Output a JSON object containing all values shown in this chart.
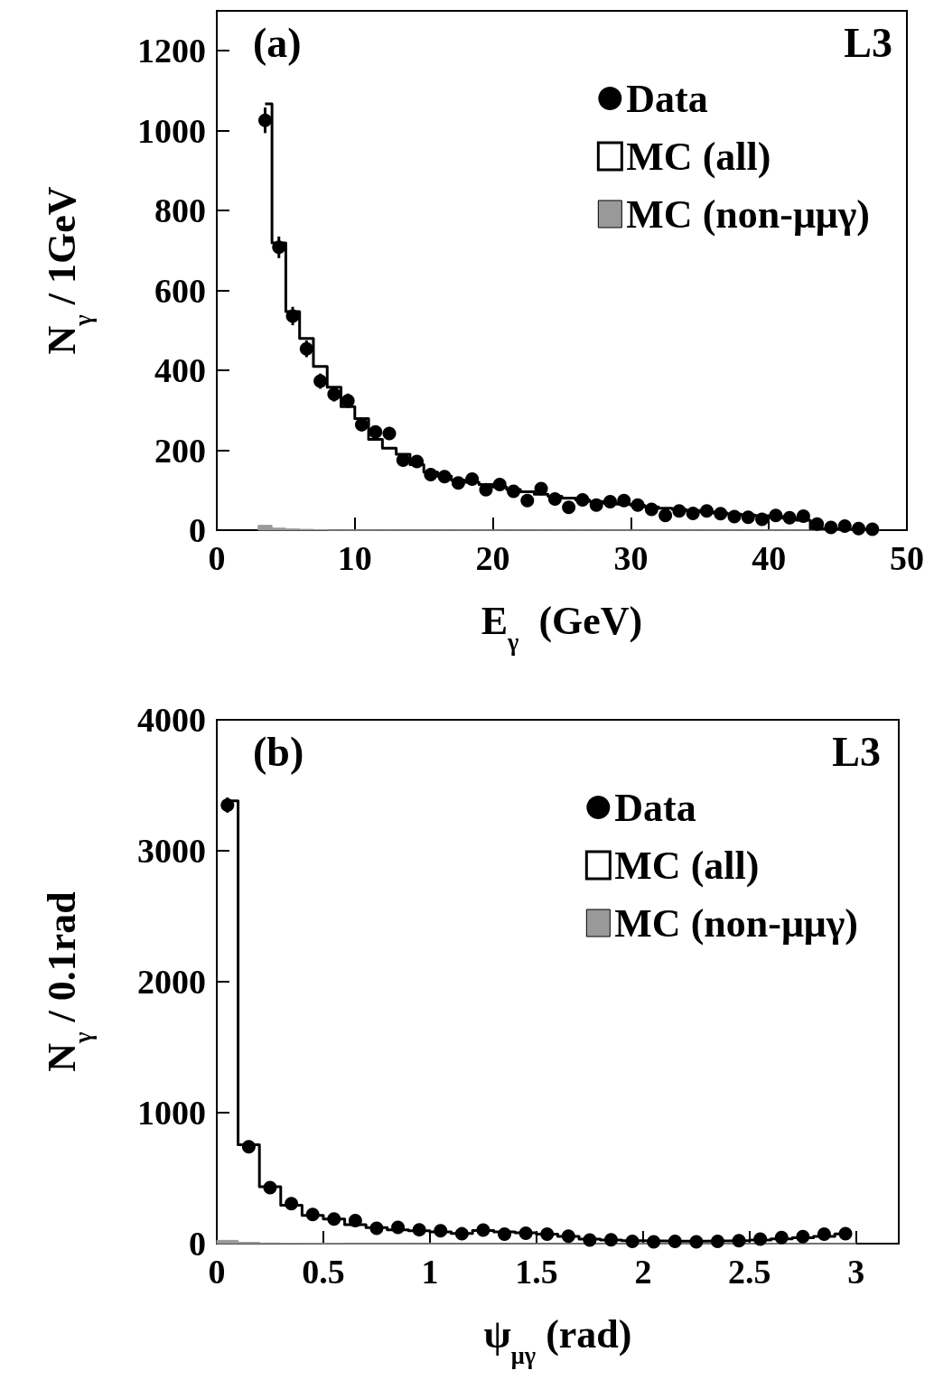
{
  "chart_data": [
    {
      "type": "histogram",
      "xlabel": "E$_{γ}$  (GeV)",
      "ylabel": "N$_{γ}$ / 1GeV",
      "annotations": [
        "(a)",
        "L3"
      ],
      "xlim": [
        0,
        50
      ],
      "xticks": [
        0,
        10,
        20,
        30,
        40,
        50
      ],
      "ylim": [
        0,
        1300
      ],
      "yticks": [
        0,
        200,
        400,
        600,
        800,
        1000,
        1200
      ],
      "legend": "top right",
      "grid": false,
      "bins": [
        3,
        4,
        5,
        6,
        7,
        8,
        9,
        10,
        11,
        12,
        13,
        14,
        15,
        16,
        17,
        18,
        19,
        20,
        21,
        22,
        23,
        24,
        25,
        26,
        27,
        28,
        29,
        30,
        31,
        32,
        33,
        34,
        35,
        36,
        37,
        38,
        39,
        40,
        41,
        42,
        43,
        44,
        45,
        46,
        47,
        48
      ],
      "series": [
        {
          "name": "Data",
          "type": "scatter",
          "marker": "circle",
          "color": "#000000",
          "x": [
            3.5,
            4.5,
            5.5,
            6.5,
            7.5,
            8.5,
            9.5,
            10.5,
            11.5,
            12.5,
            13.5,
            14.5,
            15.5,
            16.5,
            17.5,
            18.5,
            19.5,
            20.5,
            21.5,
            22.5,
            23.5,
            24.5,
            25.5,
            26.5,
            27.5,
            28.5,
            29.5,
            30.5,
            31.5,
            32.5,
            33.5,
            34.5,
            35.5,
            36.5,
            37.5,
            38.5,
            39.5,
            40.5,
            41.5,
            42.5,
            43.5,
            44.5,
            45.5,
            46.5,
            47.5
          ],
          "values": [
            1026,
            708,
            536,
            454,
            373,
            340,
            324,
            264,
            246,
            242,
            175,
            172,
            139,
            134,
            118,
            128,
            101,
            114,
            97,
            74,
            104,
            78,
            57,
            76,
            63,
            71,
            74,
            63,
            52,
            37,
            48,
            42,
            48,
            41,
            34,
            32,
            27,
            37,
            31,
            35,
            15,
            7,
            10,
            4,
            2
          ],
          "errors": [
            32,
            27,
            23,
            21,
            19,
            18,
            18,
            16,
            16,
            16,
            13,
            13,
            12,
            12,
            11,
            11,
            10,
            11,
            10,
            9,
            10,
            9,
            8,
            9,
            8,
            8,
            9,
            8,
            7,
            6,
            7,
            6,
            7,
            6,
            6,
            6,
            5,
            6,
            6,
            6,
            4,
            null,
            null,
            null,
            null
          ]
        },
        {
          "name": "MC (all)",
          "type": "step",
          "color": "#000000",
          "x": [
            3.5,
            4.5,
            5.5,
            6.5,
            7.5,
            8.5,
            9.5,
            10.5,
            11.5,
            12.5,
            13.5,
            14.5,
            15.5,
            16.5,
            17.5,
            18.5,
            19.5,
            20.5,
            21.5,
            22.5,
            23.5,
            24.5,
            25.5,
            26.5,
            27.5,
            28.5,
            29.5,
            30.5,
            31.5,
            32.5,
            33.5,
            34.5,
            35.5,
            36.5,
            37.5,
            38.5,
            39.5,
            40.5,
            41.5,
            42.5,
            43.5,
            44.5,
            45.5,
            46.5,
            47.5
          ],
          "values": [
            1067,
            719,
            547,
            480,
            410,
            358,
            309,
            279,
            227,
            205,
            190,
            164,
            145,
            135,
            125,
            120,
            114,
            108,
            102,
            96,
            90,
            85,
            80,
            76,
            72,
            68,
            65,
            62,
            58,
            55,
            52,
            49,
            46,
            43,
            40,
            38,
            36,
            34,
            30,
            25,
            4,
            3,
            2,
            2,
            1
          ]
        },
        {
          "name": "MC (non-μμγ)",
          "color": "#999999",
          "values": [
            12,
            5,
            3,
            2,
            1,
            0,
            0,
            0,
            0,
            0,
            0,
            0,
            0,
            0,
            0,
            0,
            0,
            0,
            0,
            0,
            0,
            0,
            0,
            0,
            0,
            0,
            0,
            0,
            0,
            0,
            0,
            0,
            0,
            0,
            0,
            0,
            0,
            0,
            0,
            0,
            0,
            0,
            0,
            0,
            0
          ]
        }
      ]
    },
    {
      "type": "histogram",
      "xlabel": "ψ$_{μγ}$ (rad)",
      "ylabel": "N$_{γ}$ / 0.1rad",
      "annotations": [
        "(b)",
        "L3"
      ],
      "xlim": [
        0,
        3.2
      ],
      "xticks": [
        0,
        0.5,
        1,
        1.5,
        2,
        2.5,
        3
      ],
      "ylim": [
        0,
        4000
      ],
      "yticks": [
        0,
        1000,
        2000,
        3000,
        4000
      ],
      "legend": "top right",
      "grid": false,
      "bins": [
        0,
        0.1,
        0.2,
        0.3,
        0.4,
        0.5,
        0.6,
        0.7,
        0.8,
        0.9,
        1,
        1.1,
        1.2,
        1.3,
        1.4,
        1.5,
        1.6,
        1.7,
        1.8,
        1.9,
        2,
        2.1,
        2.2,
        2.3,
        2.4,
        2.5,
        2.6,
        2.7,
        2.8,
        2.9,
        3
      ],
      "series": [
        {
          "name": "Data",
          "type": "scatter",
          "marker": "circle",
          "color": "#000000",
          "x": [
            0.05,
            0.15,
            0.25,
            0.35,
            0.45,
            0.55,
            0.65,
            0.75,
            0.85,
            0.95,
            1.05,
            1.15,
            1.25,
            1.35,
            1.45,
            1.55,
            1.65,
            1.75,
            1.85,
            1.95,
            2.05,
            2.15,
            2.25,
            2.35,
            2.45,
            2.55,
            2.65,
            2.75,
            2.85,
            2.95
          ],
          "values": [
            3349,
            739,
            427,
            305,
            223,
            188,
            176,
            117,
            124,
            106,
            98,
            75,
            103,
            73,
            80,
            73,
            57,
            27,
            30,
            18,
            14,
            18,
            14,
            18,
            23,
            34,
            46,
            53,
            73,
            76
          ],
          "errors": [
            58,
            27,
            21,
            17,
            15,
            14,
            13,
            11,
            11,
            10,
            10,
            9,
            10,
            9,
            9,
            9,
            8,
            null,
            null,
            null,
            null,
            null,
            null,
            null,
            null,
            6,
            7,
            7,
            9,
            9
          ]
        },
        {
          "name": "MC (all)",
          "type": "step",
          "color": "#000000",
          "x": [
            0.05,
            0.15,
            0.25,
            0.35,
            0.45,
            0.55,
            0.65,
            0.75,
            0.85,
            0.95,
            1.05,
            1.15,
            1.25,
            1.35,
            1.45,
            1.55,
            1.65,
            1.75,
            1.85,
            1.95,
            2.05,
            2.15,
            2.25,
            2.35,
            2.45,
            2.55,
            2.65,
            2.75,
            2.85,
            2.95
          ],
          "values": [
            3381,
            755,
            434,
            293,
            216,
            188,
            145,
            122,
            106,
            98,
            89,
            77,
            100,
            90,
            82,
            72,
            55,
            35,
            27,
            22,
            20,
            19,
            19,
            20,
            22,
            28,
            36,
            45,
            55,
            75
          ]
        },
        {
          "name": "MC (non-μμγ)",
          "color": "#999999",
          "values": [
            25,
            10,
            5,
            3,
            2,
            1,
            0,
            0,
            0,
            0,
            0,
            0,
            0,
            0,
            0,
            0,
            0,
            0,
            0,
            0,
            0,
            0,
            0,
            0,
            0,
            0,
            0,
            0,
            0,
            0
          ]
        }
      ]
    }
  ]
}
